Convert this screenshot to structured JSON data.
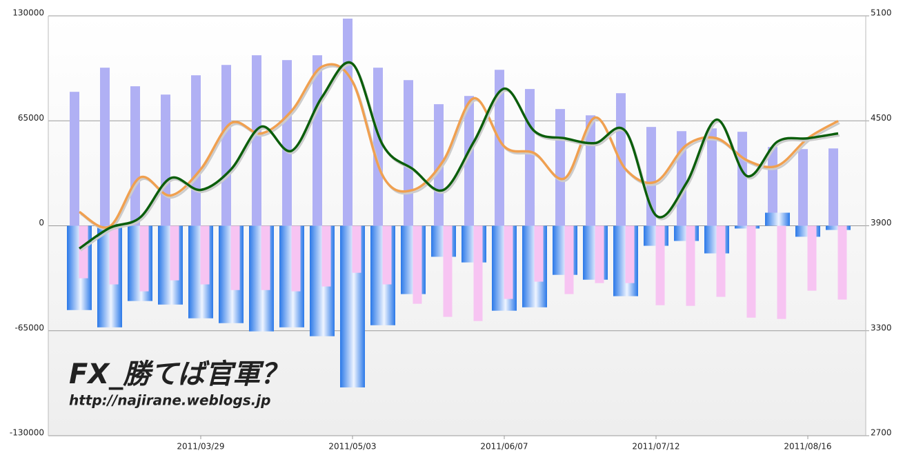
{
  "chart_data": {
    "type": "bar-line",
    "categories": [
      null,
      null,
      null,
      null,
      "2011/03/29",
      null,
      null,
      null,
      null,
      "2011/05/03",
      null,
      null,
      null,
      null,
      "2011/06/07",
      null,
      null,
      null,
      null,
      "2011/07/12",
      null,
      null,
      null,
      null,
      "2011/08/16",
      null
    ],
    "series": [
      {
        "kind": "bar",
        "color": "#b0b0f4",
        "values": [
          82961,
          97900,
          86400,
          81250,
          93200,
          99600,
          105600,
          102600,
          105600,
          128300,
          97900,
          90200,
          75300,
          80400,
          96600,
          84700,
          72300,
          68400,
          82100,
          61200,
          58600,
          60300,
          58200,
          48800,
          47500,
          47900
        ]
      },
      {
        "kind": "bar",
        "color": "#2a78e8",
        "values": [
          -52200,
          -62900,
          -46600,
          -48800,
          -57300,
          -60300,
          -65400,
          -62900,
          -68400,
          -100100,
          -61600,
          -42300,
          -19200,
          -22700,
          -52600,
          -50500,
          -30400,
          -33400,
          -43600,
          -12400,
          -9400,
          -17100,
          -1700,
          8100,
          -6800,
          -2600
        ]
      },
      {
        "kind": "bar",
        "color": "#f7c4f2",
        "values": [
          -32500,
          -36300,
          -40600,
          -33800,
          -36300,
          -39800,
          -39800,
          -40600,
          -37600,
          -29100,
          -36300,
          -48300,
          -56400,
          -59000,
          -45300,
          -34600,
          -42300,
          -35500,
          -35500,
          -49200,
          -49600,
          -44000,
          -56900,
          -57700,
          -40200,
          -45700
        ]
      },
      {
        "kind": "line",
        "axis": "y2",
        "color": "#f0a050",
        "values": [
          3979,
          3896,
          4176,
          4073,
          4223,
          4487,
          4428,
          4558,
          4810,
          4724,
          4184,
          4105,
          4274,
          4629,
          4353,
          4314,
          4172,
          4519,
          4223,
          4152,
          4361,
          4400,
          4274,
          4243,
          4400,
          4499
        ]
      },
      {
        "kind": "line",
        "axis": "y2",
        "color": "#0b5e0b",
        "values": [
          3770,
          3888,
          3947,
          4172,
          4105,
          4223,
          4467,
          4329,
          4637,
          4826,
          4361,
          4223,
          4105,
          4381,
          4684,
          4440,
          4400,
          4373,
          4440,
          3959,
          4144,
          4507,
          4184,
          4381,
          4400,
          4428
        ]
      }
    ],
    "ylim": [
      -130000,
      130000
    ],
    "yticks": [
      -130000,
      -65000,
      0,
      65000,
      130000
    ],
    "y2lim": [
      2700,
      5100
    ],
    "y2ticks": [
      2700,
      3300,
      3900,
      4500,
      5100
    ],
    "grid": true,
    "watermark": {
      "title": "FX_勝てば官軍？",
      "url": "http://najirane.weblogs.jp",
      "color": "#1a5ff0"
    }
  }
}
